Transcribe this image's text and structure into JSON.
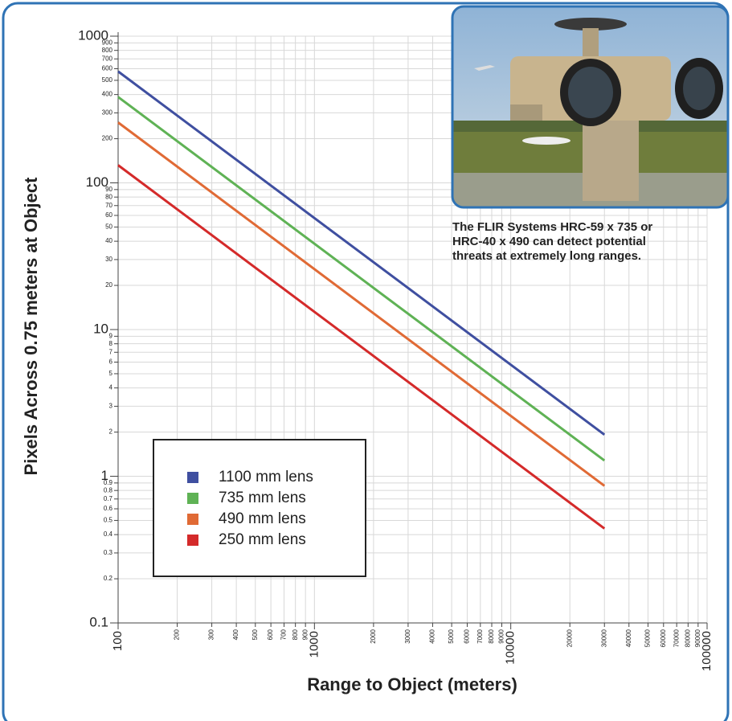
{
  "chart_data": {
    "type": "line",
    "ylabel": "Pixels Across 0.75 meters at Object",
    "xlabel": "Range to Object (meters)",
    "log_x": true,
    "log_y": true,
    "grid": true,
    "xlim": [
      100,
      100000
    ],
    "ylim": [
      0.1,
      1000
    ],
    "xticks": [
      100,
      1000,
      10000,
      100000
    ],
    "xminor_ticks": [
      200,
      300,
      400,
      500,
      600,
      700,
      800,
      900,
      2000,
      3000,
      4000,
      5000,
      6000,
      7000,
      8000,
      9000,
      20000,
      30000,
      40000,
      50000,
      60000,
      70000,
      80000,
      90000
    ],
    "yticks": [
      0.1,
      1,
      10,
      100,
      1000
    ],
    "yminor_ticks": [
      0.2,
      0.3,
      0.4,
      0.5,
      0.6,
      0.7,
      0.8,
      0.9,
      2,
      3,
      4,
      5,
      6,
      7,
      8,
      9,
      20,
      30,
      40,
      50,
      60,
      70,
      80,
      90,
      200,
      300,
      400,
      500,
      600,
      700,
      800,
      900
    ],
    "x": [
      100,
      30000
    ],
    "series": [
      {
        "name": "1100 mm lens",
        "color": "#3f4fa0",
        "values": [
          575,
          1.92
        ]
      },
      {
        "name": "735 mm lens",
        "color": "#5fb255",
        "values": [
          385,
          1.28
        ]
      },
      {
        "name": "490 mm lens",
        "color": "#e06a35",
        "values": [
          258,
          0.86
        ]
      },
      {
        "name": "250 mm lens",
        "color": "#d42a2a",
        "values": [
          132,
          0.44
        ]
      }
    ],
    "caption": [
      "The FLIR Systems HRC-59 x 735 or",
      "HRC-40 x 490 can detect potential",
      "threats at extremely long ranges."
    ]
  }
}
